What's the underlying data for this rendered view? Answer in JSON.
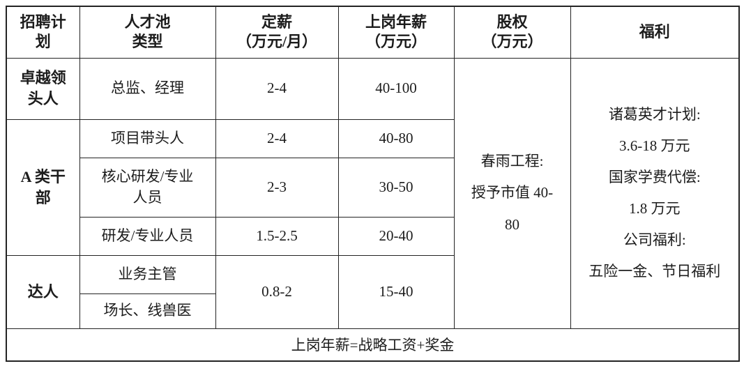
{
  "colors": {
    "background": "#ffffff",
    "border": "#232323",
    "text": "#1c1c1c"
  },
  "document": {
    "footnote": "上岗年薪=战略工资+奖金"
  },
  "table": {
    "columns": [
      {
        "label": [
          "招聘计",
          "划"
        ]
      },
      {
        "label": [
          "人才池",
          "类型"
        ]
      },
      {
        "label": [
          "定薪",
          "（万元/月）"
        ]
      },
      {
        "label": [
          "上岗年薪",
          "（万元）"
        ]
      },
      {
        "label": [
          "股权",
          "（万元）"
        ]
      },
      {
        "label": [
          "福利"
        ]
      }
    ],
    "groups": [
      {
        "plan": [
          "卓越领",
          "头人"
        ],
        "rows": [
          {
            "pool_type": "总监、经理",
            "fixed_salary": "2-4",
            "annual_salary": "40-100"
          }
        ]
      },
      {
        "plan": [
          "A 类干",
          "部"
        ],
        "rows": [
          {
            "pool_type": "项目带头人",
            "fixed_salary": "2-4",
            "annual_salary": "40-80"
          },
          {
            "pool_type": [
              "核心研发/专业",
              "人员"
            ],
            "fixed_salary": "2-3",
            "annual_salary": "30-50"
          },
          {
            "pool_type": "研发/专业人员",
            "fixed_salary": "1.5-2.5",
            "annual_salary": "20-40"
          }
        ]
      },
      {
        "plan": [
          "达人"
        ],
        "rows": [
          {
            "pool_type": "业务主管",
            "fixed_salary": "0.8-2",
            "annual_salary": "15-40"
          },
          {
            "pool_type": "场长、线兽医"
          }
        ]
      }
    ],
    "equity": [
      "春雨工程:",
      "授予市值 40-",
      "80"
    ],
    "welfare": [
      "诸葛英才计划:",
      "3.6-18 万元",
      "国家学费代偿:",
      "1.8 万元",
      "公司福利:",
      "五险一金、节日福利"
    ]
  }
}
